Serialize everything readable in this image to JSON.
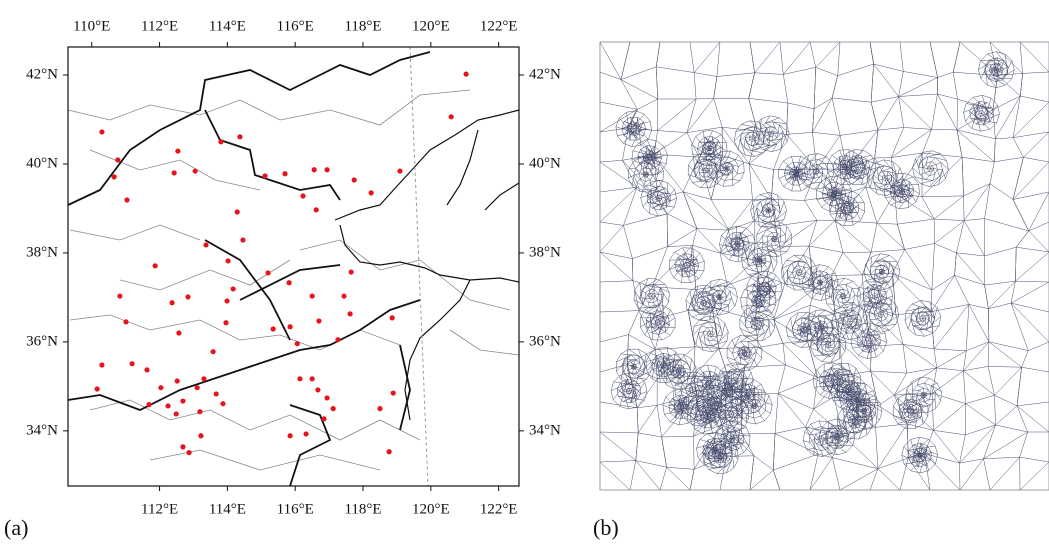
{
  "chart_data": [
    {
      "type": "map",
      "panel_label": "(a)",
      "xlim": [
        109.3,
        122.6
      ],
      "ylim": [
        32.76,
        42.63
      ],
      "xticks_top": [
        {
          "value": 110,
          "label": "110°E"
        },
        {
          "value": 112,
          "label": "112°E"
        },
        {
          "value": 114,
          "label": "114°E"
        },
        {
          "value": 116,
          "label": "116°E"
        },
        {
          "value": 118,
          "label": "118°E"
        },
        {
          "value": 120,
          "label": "120°E"
        },
        {
          "value": 122,
          "label": "122°E"
        }
      ],
      "xticks_bottom": [
        {
          "value": 112,
          "label": "112°E"
        },
        {
          "value": 114,
          "label": "114°E"
        },
        {
          "value": 116,
          "label": "116°E"
        },
        {
          "value": 118,
          "label": "118°E"
        },
        {
          "value": 120,
          "label": "120°E"
        },
        {
          "value": 122,
          "label": "122°E"
        }
      ],
      "yticks": [
        {
          "value": 34,
          "label": "34°N"
        },
        {
          "value": 36,
          "label": "36°N"
        },
        {
          "value": 38,
          "label": "38°N"
        },
        {
          "value": 40,
          "label": "40°N"
        },
        {
          "value": 42,
          "label": "42°N"
        }
      ],
      "color": "#e8141b",
      "lon": [
        121.04,
        110.3,
        110.77,
        110.66,
        112.54,
        113.81,
        114.37,
        115.11,
        115.7,
        116.56,
        116.94,
        117.74,
        118.24,
        119.09,
        120.6,
        111.04,
        112.43,
        113.05,
        114.29,
        114.46,
        113.37,
        114.02,
        116.23,
        116.62,
        111.87,
        110.83,
        111.01,
        112.37,
        112.84,
        112.57,
        114.17,
        113.99,
        113.96,
        115.2,
        115.82,
        116.5,
        117.65,
        117.44,
        117.62,
        116.7,
        115.85,
        115.35,
        117.26,
        118.86,
        116.06,
        113.58,
        110.3,
        111.19,
        110.16,
        111.63,
        112.52,
        113.31,
        113.11,
        113.67,
        113.87,
        112.04,
        111.69,
        112.25,
        112.49,
        112.69,
        113.19,
        112.69,
        112.87,
        113.22,
        116.5,
        116.14,
        116.67,
        116.94,
        117.12,
        116.85,
        116.32,
        115.85,
        118.89,
        118.5,
        118.77
      ],
      "lat": [
        42.02,
        40.72,
        40.09,
        39.71,
        40.29,
        40.5,
        40.61,
        39.73,
        39.78,
        39.87,
        39.87,
        39.64,
        39.35,
        39.84,
        41.06,
        39.19,
        39.8,
        39.84,
        38.92,
        38.29,
        38.18,
        37.82,
        39.28,
        38.97,
        37.71,
        37.03,
        36.45,
        36.88,
        37.01,
        36.2,
        37.19,
        36.92,
        36.43,
        37.55,
        37.33,
        37.03,
        37.57,
        37.03,
        36.63,
        36.47,
        36.34,
        36.29,
        36.05,
        36.54,
        35.96,
        35.78,
        35.48,
        35.51,
        34.94,
        35.37,
        35.12,
        35.17,
        34.97,
        34.83,
        34.61,
        34.97,
        34.59,
        34.56,
        34.38,
        34.67,
        34.43,
        33.64,
        33.51,
        33.89,
        35.17,
        35.17,
        34.92,
        34.74,
        34.5,
        34.27,
        33.93,
        33.89,
        34.85,
        34.5,
        33.53
      ]
    },
    {
      "type": "mesh",
      "panel_label": "(b)"
    }
  ]
}
